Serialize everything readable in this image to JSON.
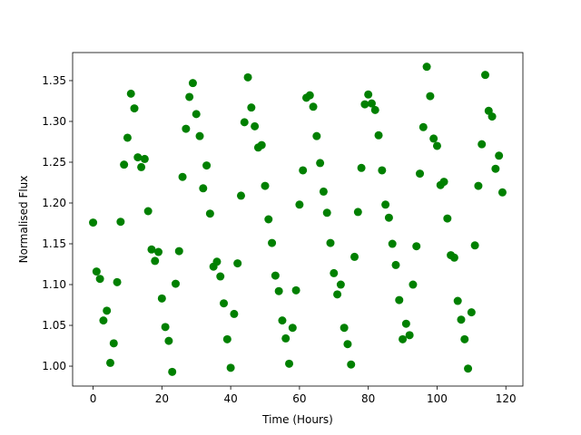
{
  "chart_data": {
    "type": "scatter",
    "x_label": "Time (Hours)",
    "y_label": "Normalised Flux",
    "color": "#008000",
    "x": [
      0,
      1,
      2,
      3,
      4,
      5,
      6,
      7,
      8,
      9,
      10,
      11,
      12,
      13,
      14,
      15,
      16,
      17,
      18,
      19,
      20,
      21,
      22,
      23,
      24,
      25,
      26,
      27,
      28,
      29,
      30,
      31,
      32,
      33,
      34,
      35,
      36,
      37,
      38,
      39,
      40,
      41,
      42,
      43,
      44,
      45,
      46,
      47,
      48,
      49,
      50,
      51,
      52,
      53,
      54,
      55,
      56,
      57,
      58,
      59,
      60,
      61,
      62,
      63,
      64,
      65,
      66,
      67,
      68,
      69,
      70,
      71,
      72,
      73,
      74,
      75,
      76,
      77,
      78,
      79,
      80,
      81,
      82,
      83,
      84,
      85,
      86,
      87,
      88,
      89,
      90,
      91,
      92,
      93,
      94,
      95,
      96,
      97,
      98,
      99,
      100,
      101,
      102,
      103,
      104,
      105,
      106,
      107,
      108,
      109,
      110,
      111,
      112,
      113,
      114,
      115,
      116,
      117,
      118,
      119
    ],
    "values": [
      1.176,
      1.116,
      1.107,
      1.056,
      1.068,
      1.004,
      1.028,
      1.103,
      1.177,
      1.247,
      1.28,
      1.334,
      1.316,
      1.256,
      1.244,
      1.254,
      1.19,
      1.143,
      1.129,
      1.14,
      1.083,
      1.048,
      1.031,
      0.993,
      1.101,
      1.141,
      1.232,
      1.291,
      1.33,
      1.347,
      1.309,
      1.282,
      1.218,
      1.246,
      1.187,
      1.122,
      1.128,
      1.11,
      1.077,
      1.033,
      0.998,
      1.064,
      1.126,
      1.209,
      1.299,
      1.354,
      1.317,
      1.294,
      1.268,
      1.271,
      1.221,
      1.18,
      1.151,
      1.111,
      1.092,
      1.056,
      1.034,
      1.003,
      1.047,
      1.093,
      1.198,
      1.24,
      1.329,
      1.332,
      1.318,
      1.282,
      1.249,
      1.214,
      1.188,
      1.151,
      1.114,
      1.088,
      1.1,
      1.047,
      1.027,
      1.002,
      1.134,
      1.189,
      1.243,
      1.321,
      1.333,
      1.322,
      1.314,
      1.283,
      1.24,
      1.198,
      1.182,
      1.15,
      1.124,
      1.081,
      1.033,
      1.052,
      1.038,
      1.1,
      1.147,
      1.236,
      1.293,
      1.367,
      1.331,
      1.279,
      1.27,
      1.222,
      1.226,
      1.181,
      1.136,
      1.133,
      1.08,
      1.057,
      1.033,
      0.997,
      1.066,
      1.148,
      1.221,
      1.272,
      1.357,
      1.313,
      1.306,
      1.242,
      1.258,
      1.213
    ],
    "xlim": [
      -5.95,
      124.95
    ],
    "ylim": [
      0.9756,
      1.3844
    ],
    "xticks": [
      0,
      20,
      40,
      60,
      80,
      100,
      120
    ],
    "yticks": [
      {
        "value": 1.0,
        "label": "1.00"
      },
      {
        "value": 1.05,
        "label": "1.05"
      },
      {
        "value": 1.1,
        "label": "1.10"
      },
      {
        "value": 1.15,
        "label": "1.15"
      },
      {
        "value": 1.2,
        "label": "1.20"
      },
      {
        "value": 1.25,
        "label": "1.25"
      },
      {
        "value": 1.3,
        "label": "1.30"
      },
      {
        "value": 1.35,
        "label": "1.35"
      }
    ],
    "grid": false
  }
}
